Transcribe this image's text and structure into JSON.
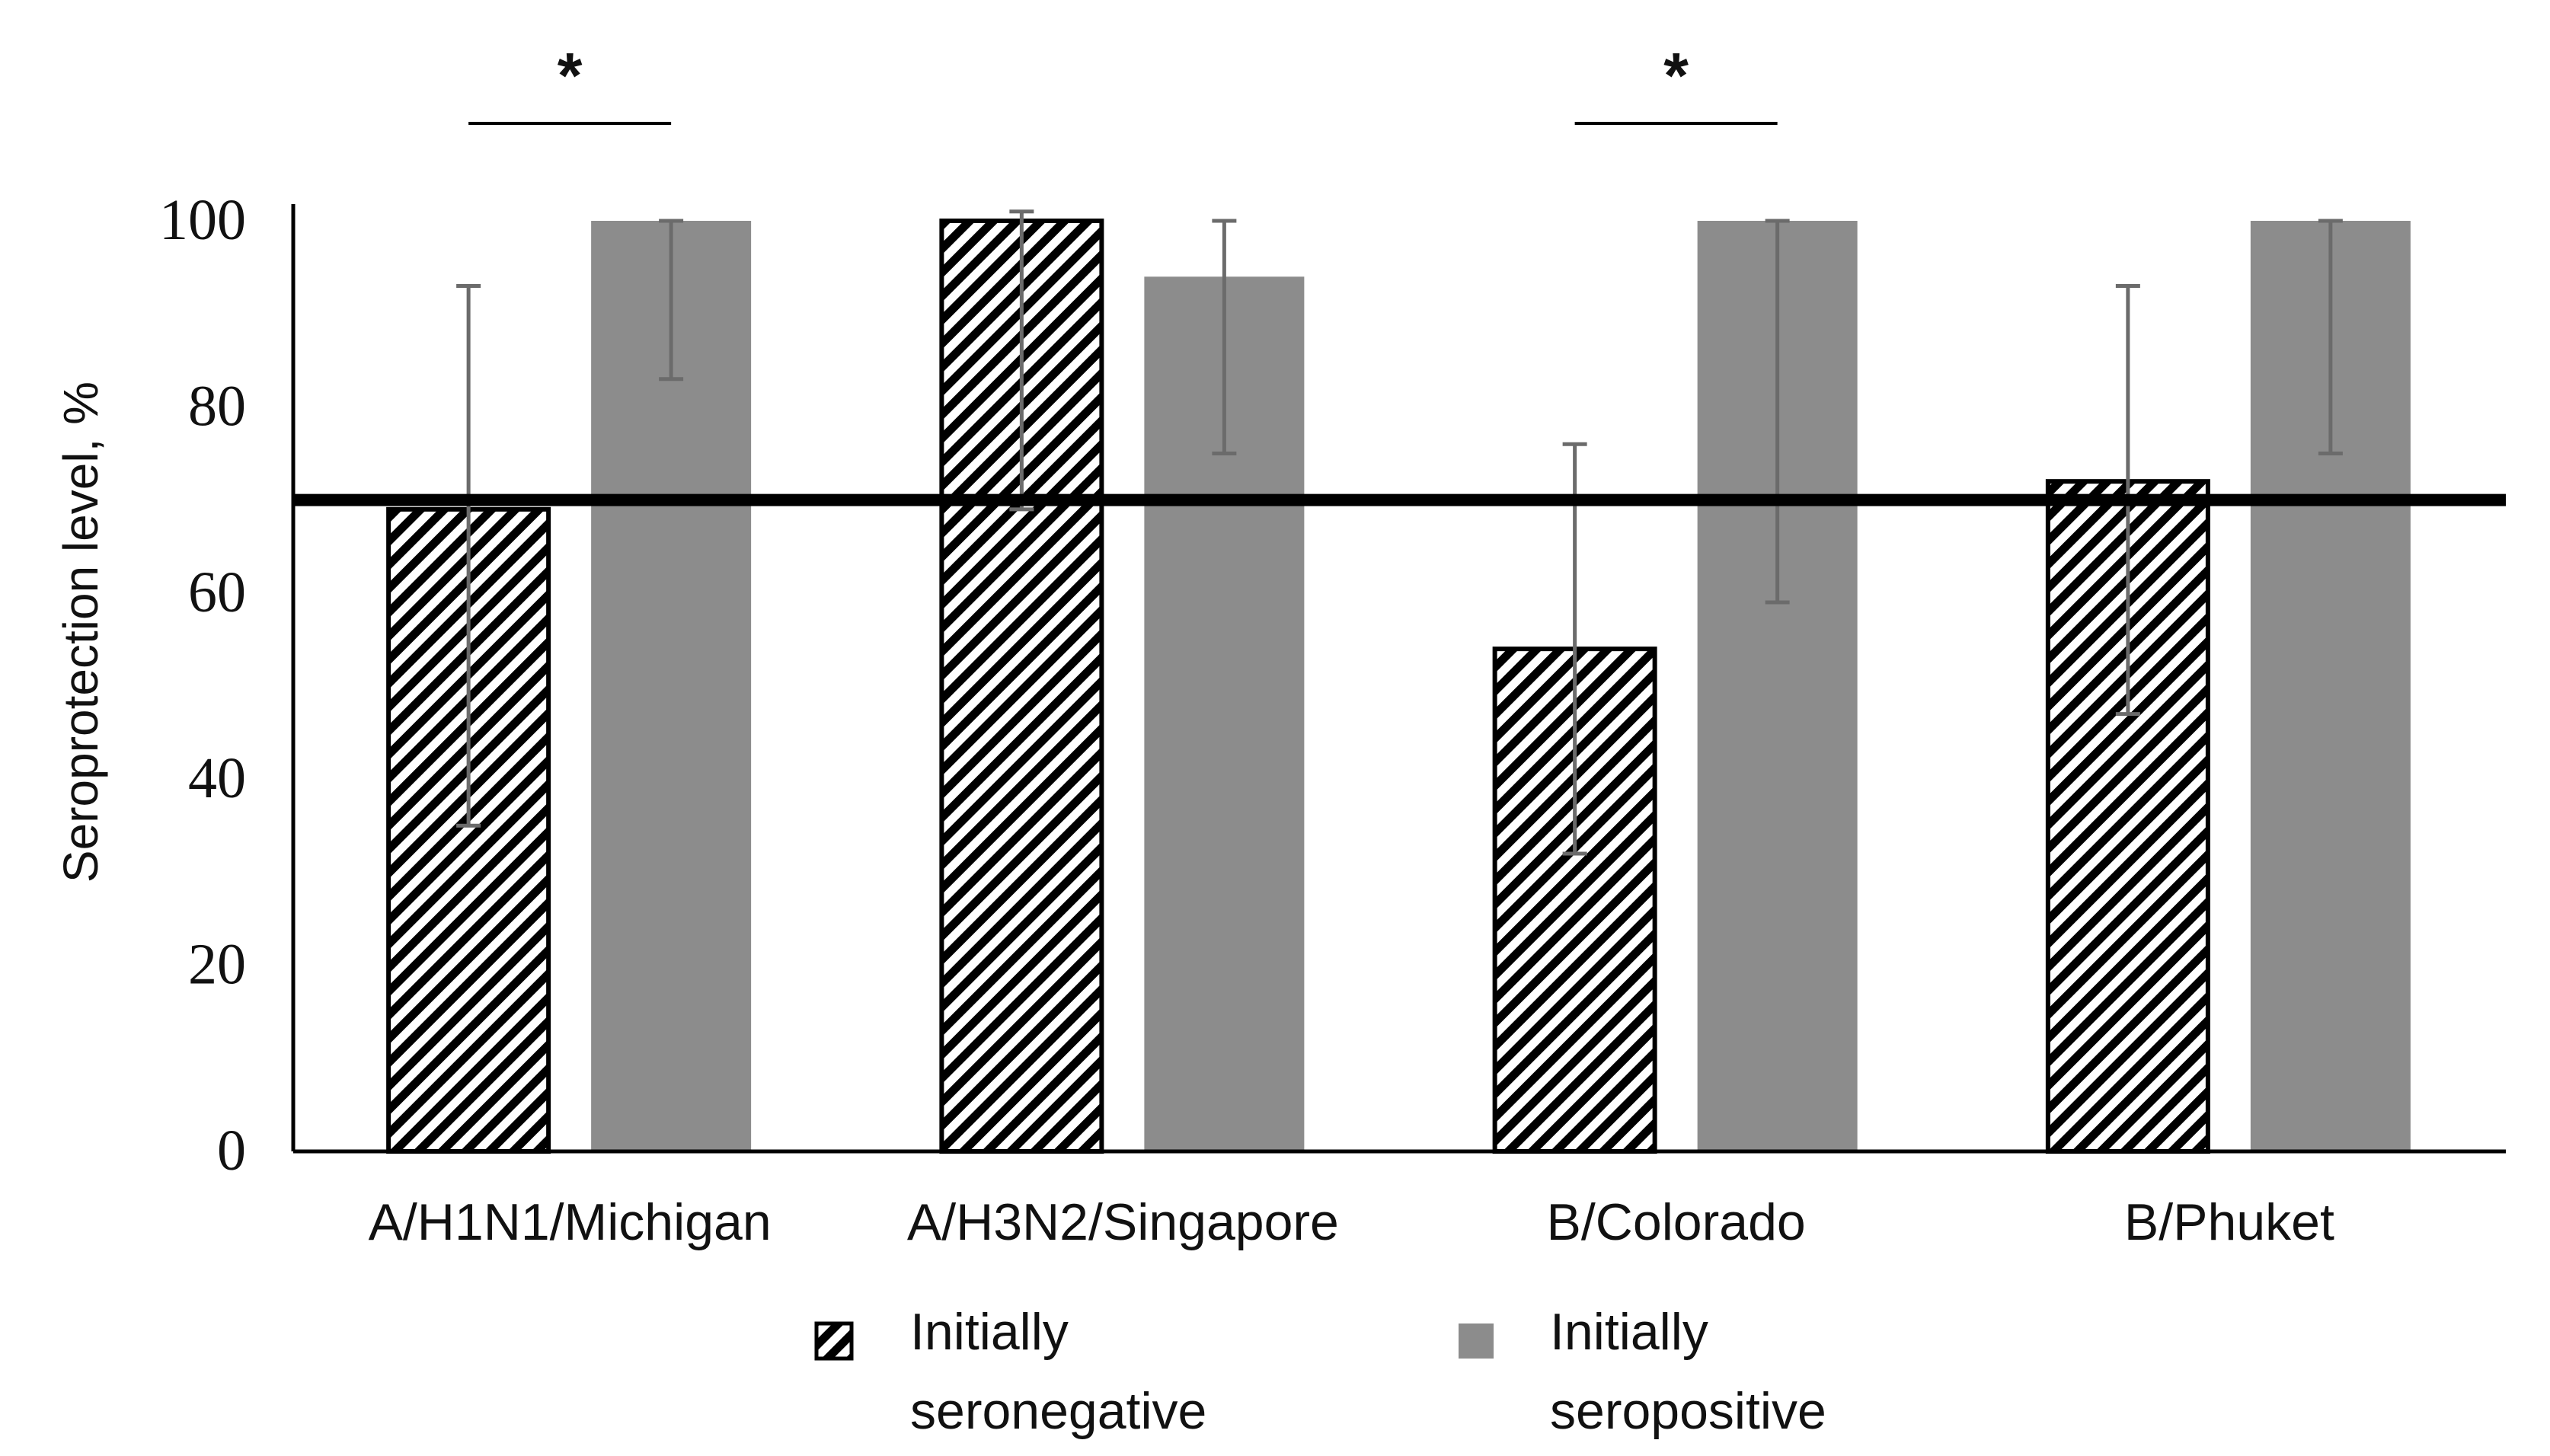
{
  "chart_data": {
    "type": "bar",
    "title": "",
    "xlabel": "",
    "ylabel": "Seroprotection level, %",
    "ylim": [
      0,
      100
    ],
    "yticks": [
      0,
      20,
      40,
      60,
      80,
      100
    ],
    "grid": false,
    "categories": [
      "A/H1N1/Michigan",
      "A/H3N2/Singapore",
      "B/Colorado",
      "B/Phuket"
    ],
    "series": [
      {
        "name": "Initially seronegative",
        "legend_lines": [
          "Initially",
          "seronegative"
        ],
        "pattern": "hatched",
        "color": "#000000",
        "values": [
          69,
          100,
          54,
          72
        ],
        "err_low": [
          35,
          69,
          32,
          47
        ],
        "err_high": [
          93,
          101,
          76,
          93
        ]
      },
      {
        "name": "Initially seropositive",
        "legend_lines": [
          "Initially",
          "seropositive"
        ],
        "pattern": "solid",
        "color": "#8c8c8c",
        "values": [
          100,
          94,
          100,
          100
        ],
        "err_low": [
          83,
          75,
          59,
          75
        ],
        "err_high": [
          100,
          100,
          100,
          100
        ]
      }
    ],
    "reference_line": {
      "value": 70
    },
    "significance": [
      {
        "category": "A/H1N1/Michigan",
        "label": "*"
      },
      {
        "category": "B/Colorado",
        "label": "*"
      }
    ],
    "legend_position": "bottom"
  }
}
